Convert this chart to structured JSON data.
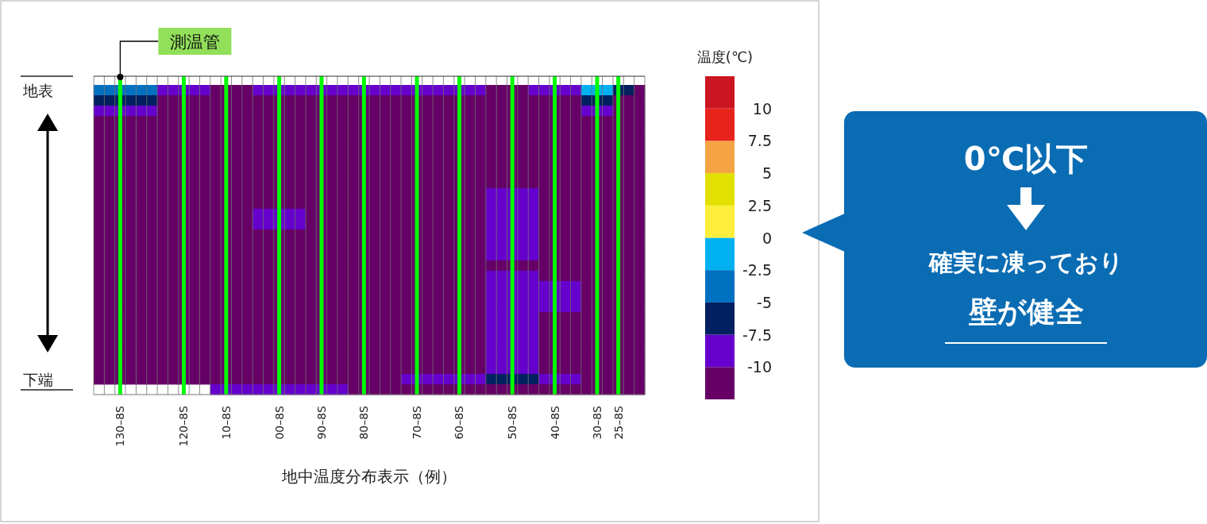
{
  "chart_data": {
    "type": "heatmap",
    "xlabel": "地中温度分布表示（例）",
    "clabel": "温度(℃)",
    "categories": [
      null,
      null,
      "130–8S",
      null,
      null,
      null,
      null,
      null,
      "120–8S",
      null,
      null,
      null,
      "10–8S",
      null,
      null,
      null,
      null,
      "00–8S",
      null,
      null,
      null,
      "90–8S",
      null,
      null,
      null,
      "80–8S",
      null,
      null,
      null,
      null,
      "70–8S",
      null,
      null,
      null,
      "60–8S",
      null,
      null,
      null,
      null,
      "50–8S",
      null,
      null,
      null,
      "40–8S",
      null,
      null,
      null,
      "30–8S",
      null,
      "25–8S",
      null,
      null
    ],
    "y_categories": [
      "地表",
      null,
      null,
      null,
      null,
      null,
      null,
      null,
      null,
      null,
      null,
      null,
      null,
      null,
      null,
      null,
      null,
      null,
      null,
      null,
      null,
      null,
      null,
      null,
      null,
      null,
      null,
      null,
      "下端",
      null
    ],
    "clim": [
      -12.5,
      12.5
    ],
    "cticks": [
      10,
      7.5,
      5,
      2.5,
      0,
      -2.5,
      -5,
      -7.5,
      -10
    ],
    "grid": "x",
    "annotations": [
      "測温管",
      "0℃以下",
      "確実に凍っており",
      "壁が健全"
    ],
    "cells": [
      [
        -3.75,
        -3.75,
        -3.75,
        -3.75,
        -3.75,
        -3.75,
        -8.75,
        -8.75,
        -8.75,
        -8.75,
        -8.75,
        -11.25,
        -11.25,
        -11.25,
        -11.25,
        -8.75,
        -8.75,
        -8.75,
        -8.75,
        -8.75,
        -8.75,
        -8.75,
        -8.75,
        -8.75,
        -8.75,
        -8.75,
        -8.75,
        -8.75,
        -8.75,
        -8.75,
        -8.75,
        -8.75,
        -8.75,
        -8.75,
        -8.75,
        -8.75,
        -8.75,
        -11.25,
        -11.25,
        -11.25,
        -11.25,
        -8.75,
        -8.75,
        -8.75,
        -8.75,
        -8.75,
        -1.25,
        -1.25,
        -1.25,
        -6.25,
        -6.25,
        -11.25
      ],
      [
        -6.25,
        -6.25,
        -6.25,
        -6.25,
        -6.25,
        -6.25,
        -11.25,
        -11.25,
        -11.25,
        -11.25,
        -11.25,
        -11.25,
        -11.25,
        -11.25,
        -11.25,
        -11.25,
        -11.25,
        -11.25,
        -11.25,
        -11.25,
        -11.25,
        -11.25,
        -11.25,
        -11.25,
        -11.25,
        -11.25,
        -11.25,
        -11.25,
        -11.25,
        -11.25,
        -11.25,
        -11.25,
        -11.25,
        -11.25,
        -11.25,
        -11.25,
        -11.25,
        -11.25,
        -11.25,
        -11.25,
        -11.25,
        -11.25,
        -11.25,
        -11.25,
        -11.25,
        -11.25,
        -6.25,
        -6.25,
        -6.25,
        -11.25,
        -11.25,
        -11.25
      ],
      [
        -8.75,
        -8.75,
        -8.75,
        -8.75,
        -8.75,
        -8.75,
        -11.25,
        -11.25,
        -11.25,
        -11.25,
        -11.25,
        -11.25,
        -11.25,
        -11.25,
        -11.25,
        -11.25,
        -11.25,
        -11.25,
        -11.25,
        -11.25,
        -11.25,
        -11.25,
        -11.25,
        -11.25,
        -11.25,
        -11.25,
        -11.25,
        -11.25,
        -11.25,
        -11.25,
        -11.25,
        -11.25,
        -11.25,
        -11.25,
        -11.25,
        -11.25,
        -11.25,
        -11.25,
        -11.25,
        -11.25,
        -11.25,
        -11.25,
        -11.25,
        -11.25,
        -11.25,
        -11.25,
        -8.75,
        -8.75,
        -8.75,
        -11.25,
        -11.25,
        -11.25
      ],
      [
        -11.25,
        -11.25,
        -11.25,
        -11.25,
        -11.25,
        -11.25,
        -11.25,
        -11.25,
        -11.25,
        -11.25,
        -11.25,
        -11.25,
        -11.25,
        -11.25,
        -11.25,
        -11.25,
        -11.25,
        -11.25,
        -11.25,
        -11.25,
        -11.25,
        -11.25,
        -11.25,
        -11.25,
        -11.25,
        -11.25,
        -11.25,
        -11.25,
        -11.25,
        -11.25,
        -11.25,
        -11.25,
        -11.25,
        -11.25,
        -11.25,
        -11.25,
        -11.25,
        -11.25,
        -11.25,
        -11.25,
        -11.25,
        -11.25,
        -11.25,
        -11.25,
        -11.25,
        -11.25,
        -11.25,
        -11.25,
        -11.25,
        -11.25,
        -11.25,
        -11.25
      ],
      [
        -11.25,
        -11.25,
        -11.25,
        -11.25,
        -11.25,
        -11.25,
        -11.25,
        -11.25,
        -11.25,
        -11.25,
        -11.25,
        -11.25,
        -11.25,
        -11.25,
        -11.25,
        -11.25,
        -11.25,
        -11.25,
        -11.25,
        -11.25,
        -11.25,
        -11.25,
        -11.25,
        -11.25,
        -11.25,
        -11.25,
        -11.25,
        -11.25,
        -11.25,
        -11.25,
        -11.25,
        -11.25,
        -11.25,
        -11.25,
        -11.25,
        -11.25,
        -11.25,
        -11.25,
        -11.25,
        -11.25,
        -11.25,
        -11.25,
        -11.25,
        -11.25,
        -11.25,
        -11.25,
        -11.25,
        -11.25,
        -11.25,
        -11.25,
        -11.25,
        -11.25
      ],
      [
        -11.25,
        -11.25,
        -11.25,
        -11.25,
        -11.25,
        -11.25,
        -11.25,
        -11.25,
        -11.25,
        -11.25,
        -11.25,
        -11.25,
        -11.25,
        -11.25,
        -11.25,
        -11.25,
        -11.25,
        -11.25,
        -11.25,
        -11.25,
        -11.25,
        -11.25,
        -11.25,
        -11.25,
        -11.25,
        -11.25,
        -11.25,
        -11.25,
        -11.25,
        -11.25,
        -11.25,
        -11.25,
        -11.25,
        -11.25,
        -11.25,
        -11.25,
        -11.25,
        -11.25,
        -11.25,
        -11.25,
        -11.25,
        -11.25,
        -11.25,
        -11.25,
        -11.25,
        -11.25,
        -11.25,
        -11.25,
        -11.25,
        -11.25,
        -11.25,
        -11.25
      ],
      [
        -11.25,
        -11.25,
        -11.25,
        -11.25,
        -11.25,
        -11.25,
        -11.25,
        -11.25,
        -11.25,
        -11.25,
        -11.25,
        -11.25,
        -11.25,
        -11.25,
        -11.25,
        -11.25,
        -11.25,
        -11.25,
        -11.25,
        -11.25,
        -11.25,
        -11.25,
        -11.25,
        -11.25,
        -11.25,
        -11.25,
        -11.25,
        -11.25,
        -11.25,
        -11.25,
        -11.25,
        -11.25,
        -11.25,
        -11.25,
        -11.25,
        -11.25,
        -11.25,
        -11.25,
        -11.25,
        -11.25,
        -11.25,
        -11.25,
        -11.25,
        -11.25,
        -11.25,
        -11.25,
        -11.25,
        -11.25,
        -11.25,
        -11.25,
        -11.25,
        -11.25
      ],
      [
        -11.25,
        -11.25,
        -11.25,
        -11.25,
        -11.25,
        -11.25,
        -11.25,
        -11.25,
        -11.25,
        -11.25,
        -11.25,
        -11.25,
        -11.25,
        -11.25,
        -11.25,
        -11.25,
        -11.25,
        -11.25,
        -11.25,
        -11.25,
        -11.25,
        -11.25,
        -11.25,
        -11.25,
        -11.25,
        -11.25,
        -11.25,
        -11.25,
        -11.25,
        -11.25,
        -11.25,
        -11.25,
        -11.25,
        -11.25,
        -11.25,
        -11.25,
        -11.25,
        -11.25,
        -11.25,
        -11.25,
        -11.25,
        -11.25,
        -11.25,
        -11.25,
        -11.25,
        -11.25,
        -11.25,
        -11.25,
        -11.25,
        -11.25,
        -11.25,
        -11.25
      ],
      [
        -11.25,
        -11.25,
        -11.25,
        -11.25,
        -11.25,
        -11.25,
        -11.25,
        -11.25,
        -11.25,
        -11.25,
        -11.25,
        -11.25,
        -11.25,
        -11.25,
        -11.25,
        -11.25,
        -11.25,
        -11.25,
        -11.25,
        -11.25,
        -11.25,
        -11.25,
        -11.25,
        -11.25,
        -11.25,
        -11.25,
        -11.25,
        -11.25,
        -11.25,
        -11.25,
        -11.25,
        -11.25,
        -11.25,
        -11.25,
        -11.25,
        -11.25,
        -11.25,
        -11.25,
        -11.25,
        -11.25,
        -11.25,
        -11.25,
        -11.25,
        -11.25,
        -11.25,
        -11.25,
        -11.25,
        -11.25,
        -11.25,
        -11.25,
        -11.25,
        -11.25
      ],
      [
        -11.25,
        -11.25,
        -11.25,
        -11.25,
        -11.25,
        -11.25,
        -11.25,
        -11.25,
        -11.25,
        -11.25,
        -11.25,
        -11.25,
        -11.25,
        -11.25,
        -11.25,
        -11.25,
        -11.25,
        -11.25,
        -11.25,
        -11.25,
        -11.25,
        -11.25,
        -11.25,
        -11.25,
        -11.25,
        -11.25,
        -11.25,
        -11.25,
        -11.25,
        -11.25,
        -11.25,
        -11.25,
        -11.25,
        -11.25,
        -11.25,
        -11.25,
        -11.25,
        -11.25,
        -11.25,
        -11.25,
        -11.25,
        -11.25,
        -11.25,
        -11.25,
        -11.25,
        -11.25,
        -11.25,
        -11.25,
        -11.25,
        -11.25,
        -11.25,
        -11.25
      ],
      [
        -11.25,
        -11.25,
        -11.25,
        -11.25,
        -11.25,
        -11.25,
        -11.25,
        -11.25,
        -11.25,
        -11.25,
        -11.25,
        -11.25,
        -11.25,
        -11.25,
        -11.25,
        -11.25,
        -11.25,
        -11.25,
        -11.25,
        -11.25,
        -11.25,
        -11.25,
        -11.25,
        -11.25,
        -11.25,
        -11.25,
        -11.25,
        -11.25,
        -11.25,
        -11.25,
        -11.25,
        -11.25,
        -11.25,
        -11.25,
        -11.25,
        -11.25,
        -11.25,
        -8.75,
        -8.75,
        -8.75,
        -8.75,
        -8.75,
        -11.25,
        -11.25,
        -11.25,
        -11.25,
        -11.25,
        -11.25,
        -11.25,
        -11.25,
        -11.25,
        -11.25
      ],
      [
        -11.25,
        -11.25,
        -11.25,
        -11.25,
        -11.25,
        -11.25,
        -11.25,
        -11.25,
        -11.25,
        -11.25,
        -11.25,
        -11.25,
        -11.25,
        -11.25,
        -11.25,
        -11.25,
        -11.25,
        -11.25,
        -11.25,
        -11.25,
        -11.25,
        -11.25,
        -11.25,
        -11.25,
        -11.25,
        -11.25,
        -11.25,
        -11.25,
        -11.25,
        -11.25,
        -11.25,
        -11.25,
        -11.25,
        -11.25,
        -11.25,
        -11.25,
        -11.25,
        -8.75,
        -8.75,
        -8.75,
        -8.75,
        -8.75,
        -11.25,
        -11.25,
        -11.25,
        -11.25,
        -11.25,
        -11.25,
        -11.25,
        -11.25,
        -11.25,
        -11.25
      ],
      [
        -11.25,
        -11.25,
        -11.25,
        -11.25,
        -11.25,
        -11.25,
        -11.25,
        -11.25,
        -11.25,
        -11.25,
        -11.25,
        -11.25,
        -11.25,
        -11.25,
        -11.25,
        -8.75,
        -8.75,
        -8.75,
        -8.75,
        -8.75,
        -11.25,
        -11.25,
        -11.25,
        -11.25,
        -11.25,
        -11.25,
        -11.25,
        -11.25,
        -11.25,
        -11.25,
        -11.25,
        -11.25,
        -11.25,
        -11.25,
        -11.25,
        -11.25,
        -11.25,
        -8.75,
        -8.75,
        -8.75,
        -8.75,
        -8.75,
        -11.25,
        -11.25,
        -11.25,
        -11.25,
        -11.25,
        -11.25,
        -11.25,
        -11.25,
        -11.25,
        -11.25
      ],
      [
        -11.25,
        -11.25,
        -11.25,
        -11.25,
        -11.25,
        -11.25,
        -11.25,
        -11.25,
        -11.25,
        -11.25,
        -11.25,
        -11.25,
        -11.25,
        -11.25,
        -11.25,
        -8.75,
        -8.75,
        -8.75,
        -8.75,
        -8.75,
        -11.25,
        -11.25,
        -11.25,
        -11.25,
        -11.25,
        -11.25,
        -11.25,
        -11.25,
        -11.25,
        -11.25,
        -11.25,
        -11.25,
        -11.25,
        -11.25,
        -11.25,
        -11.25,
        -11.25,
        -8.75,
        -8.75,
        -8.75,
        -8.75,
        -8.75,
        -11.25,
        -11.25,
        -11.25,
        -11.25,
        -11.25,
        -11.25,
        -11.25,
        -11.25,
        -11.25,
        -11.25
      ],
      [
        -11.25,
        -11.25,
        -11.25,
        -11.25,
        -11.25,
        -11.25,
        -11.25,
        -11.25,
        -11.25,
        -11.25,
        -11.25,
        -11.25,
        -11.25,
        -11.25,
        -11.25,
        -11.25,
        -11.25,
        -11.25,
        -11.25,
        -11.25,
        -11.25,
        -11.25,
        -11.25,
        -11.25,
        -11.25,
        -11.25,
        -11.25,
        -11.25,
        -11.25,
        -11.25,
        -11.25,
        -11.25,
        -11.25,
        -11.25,
        -11.25,
        -11.25,
        -11.25,
        -8.75,
        -8.75,
        -8.75,
        -8.75,
        -8.75,
        -11.25,
        -11.25,
        -11.25,
        -11.25,
        -11.25,
        -11.25,
        -11.25,
        -11.25,
        -11.25,
        -11.25
      ],
      [
        -11.25,
        -11.25,
        -11.25,
        -11.25,
        -11.25,
        -11.25,
        -11.25,
        -11.25,
        -11.25,
        -11.25,
        -11.25,
        -11.25,
        -11.25,
        -11.25,
        -11.25,
        -11.25,
        -11.25,
        -11.25,
        -11.25,
        -11.25,
        -11.25,
        -11.25,
        -11.25,
        -11.25,
        -11.25,
        -11.25,
        -11.25,
        -11.25,
        -11.25,
        -11.25,
        -11.25,
        -11.25,
        -11.25,
        -11.25,
        -11.25,
        -11.25,
        -11.25,
        -8.75,
        -8.75,
        -8.75,
        -8.75,
        -8.75,
        -11.25,
        -11.25,
        -11.25,
        -11.25,
        -11.25,
        -11.25,
        -11.25,
        -11.25,
        -11.25,
        -11.25
      ],
      [
        -11.25,
        -11.25,
        -11.25,
        -11.25,
        -11.25,
        -11.25,
        -11.25,
        -11.25,
        -11.25,
        -11.25,
        -11.25,
        -11.25,
        -11.25,
        -11.25,
        -11.25,
        -11.25,
        -11.25,
        -11.25,
        -11.25,
        -11.25,
        -11.25,
        -11.25,
        -11.25,
        -11.25,
        -11.25,
        -11.25,
        -11.25,
        -11.25,
        -11.25,
        -11.25,
        -11.25,
        -11.25,
        -11.25,
        -11.25,
        -11.25,
        -11.25,
        -11.25,
        -8.75,
        -8.75,
        -8.75,
        -8.75,
        -8.75,
        -11.25,
        -11.25,
        -11.25,
        -11.25,
        -11.25,
        -11.25,
        -11.25,
        -11.25,
        -11.25,
        -11.25
      ],
      [
        -11.25,
        -11.25,
        -11.25,
        -11.25,
        -11.25,
        -11.25,
        -11.25,
        -11.25,
        -11.25,
        -11.25,
        -11.25,
        -11.25,
        -11.25,
        -11.25,
        -11.25,
        -11.25,
        -11.25,
        -11.25,
        -11.25,
        -11.25,
        -11.25,
        -11.25,
        -11.25,
        -11.25,
        -11.25,
        -11.25,
        -11.25,
        -11.25,
        -11.25,
        -11.25,
        -11.25,
        -11.25,
        -11.25,
        -11.25,
        -11.25,
        -11.25,
        -11.25,
        -11.25,
        -11.25,
        -11.25,
        -11.25,
        -11.25,
        -11.25,
        -11.25,
        -11.25,
        -11.25,
        -11.25,
        -11.25,
        -11.25,
        -11.25,
        -11.25,
        -11.25
      ],
      [
        -11.25,
        -11.25,
        -11.25,
        -11.25,
        -11.25,
        -11.25,
        -11.25,
        -11.25,
        -11.25,
        -11.25,
        -11.25,
        -11.25,
        -11.25,
        -11.25,
        -11.25,
        -11.25,
        -11.25,
        -11.25,
        -11.25,
        -11.25,
        -11.25,
        -11.25,
        -11.25,
        -11.25,
        -11.25,
        -11.25,
        -11.25,
        -11.25,
        -11.25,
        -11.25,
        -11.25,
        -11.25,
        -11.25,
        -11.25,
        -11.25,
        -11.25,
        -11.25,
        -8.75,
        -8.75,
        -8.75,
        -8.75,
        -8.75,
        -11.25,
        -11.25,
        -11.25,
        -11.25,
        -11.25,
        -11.25,
        -11.25,
        -11.25,
        -11.25,
        -11.25
      ],
      [
        -11.25,
        -11.25,
        -11.25,
        -11.25,
        -11.25,
        -11.25,
        -11.25,
        -11.25,
        -11.25,
        -11.25,
        -11.25,
        -11.25,
        -11.25,
        -11.25,
        -11.25,
        -11.25,
        -11.25,
        -11.25,
        -11.25,
        -11.25,
        -11.25,
        -11.25,
        -11.25,
        -11.25,
        -11.25,
        -11.25,
        -11.25,
        -11.25,
        -11.25,
        -11.25,
        -11.25,
        -11.25,
        -11.25,
        -11.25,
        -11.25,
        -11.25,
        -11.25,
        -8.75,
        -8.75,
        -8.75,
        -8.75,
        -8.75,
        -8.75,
        -8.75,
        -8.75,
        -8.75,
        -11.25,
        -11.25,
        -11.25,
        -11.25,
        -11.25,
        -11.25
      ],
      [
        -11.25,
        -11.25,
        -11.25,
        -11.25,
        -11.25,
        -11.25,
        -11.25,
        -11.25,
        -11.25,
        -11.25,
        -11.25,
        -11.25,
        -11.25,
        -11.25,
        -11.25,
        -11.25,
        -11.25,
        -11.25,
        -11.25,
        -11.25,
        -11.25,
        -11.25,
        -11.25,
        -11.25,
        -11.25,
        -11.25,
        -11.25,
        -11.25,
        -11.25,
        -11.25,
        -11.25,
        -11.25,
        -11.25,
        -11.25,
        -11.25,
        -11.25,
        -11.25,
        -8.75,
        -8.75,
        -8.75,
        -8.75,
        -8.75,
        -8.75,
        -8.75,
        -8.75,
        -8.75,
        -11.25,
        -11.25,
        -11.25,
        -11.25,
        -11.25,
        -11.25
      ],
      [
        -11.25,
        -11.25,
        -11.25,
        -11.25,
        -11.25,
        -11.25,
        -11.25,
        -11.25,
        -11.25,
        -11.25,
        -11.25,
        -11.25,
        -11.25,
        -11.25,
        -11.25,
        -11.25,
        -11.25,
        -11.25,
        -11.25,
        -11.25,
        -11.25,
        -11.25,
        -11.25,
        -11.25,
        -11.25,
        -11.25,
        -11.25,
        -11.25,
        -11.25,
        -11.25,
        -11.25,
        -11.25,
        -11.25,
        -11.25,
        -11.25,
        -11.25,
        -11.25,
        -8.75,
        -8.75,
        -8.75,
        -8.75,
        -8.75,
        -8.75,
        -8.75,
        -8.75,
        -8.75,
        -11.25,
        -11.25,
        -11.25,
        -11.25,
        -11.25,
        -11.25
      ],
      [
        -11.25,
        -11.25,
        -11.25,
        -11.25,
        -11.25,
        -11.25,
        -11.25,
        -11.25,
        -11.25,
        -11.25,
        -11.25,
        -11.25,
        -11.25,
        -11.25,
        -11.25,
        -11.25,
        -11.25,
        -11.25,
        -11.25,
        -11.25,
        -11.25,
        -11.25,
        -11.25,
        -11.25,
        -11.25,
        -11.25,
        -11.25,
        -11.25,
        -11.25,
        -11.25,
        -11.25,
        -11.25,
        -11.25,
        -11.25,
        -11.25,
        -11.25,
        -11.25,
        -8.75,
        -8.75,
        -8.75,
        -8.75,
        -8.75,
        -11.25,
        -11.25,
        -11.25,
        -11.25,
        -11.25,
        -11.25,
        -11.25,
        -11.25,
        -11.25,
        -11.25
      ],
      [
        -11.25,
        -11.25,
        -11.25,
        -11.25,
        -11.25,
        -11.25,
        -11.25,
        -11.25,
        -11.25,
        -11.25,
        -11.25,
        -11.25,
        -11.25,
        -11.25,
        -11.25,
        -11.25,
        -11.25,
        -11.25,
        -11.25,
        -11.25,
        -11.25,
        -11.25,
        -11.25,
        -11.25,
        -11.25,
        -11.25,
        -11.25,
        -11.25,
        -11.25,
        -11.25,
        -11.25,
        -11.25,
        -11.25,
        -11.25,
        -11.25,
        -11.25,
        -11.25,
        -8.75,
        -8.75,
        -8.75,
        -8.75,
        -8.75,
        -11.25,
        -11.25,
        -11.25,
        -11.25,
        -11.25,
        -11.25,
        -11.25,
        -11.25,
        -11.25,
        -11.25
      ],
      [
        -11.25,
        -11.25,
        -11.25,
        -11.25,
        -11.25,
        -11.25,
        -11.25,
        -11.25,
        -11.25,
        -11.25,
        -11.25,
        -11.25,
        -11.25,
        -11.25,
        -11.25,
        -11.25,
        -11.25,
        -11.25,
        -11.25,
        -11.25,
        -11.25,
        -11.25,
        -11.25,
        -11.25,
        -11.25,
        -11.25,
        -11.25,
        -11.25,
        -11.25,
        -11.25,
        -11.25,
        -11.25,
        -11.25,
        -11.25,
        -11.25,
        -11.25,
        -11.25,
        -8.75,
        -8.75,
        -8.75,
        -8.75,
        -8.75,
        -11.25,
        -11.25,
        -11.25,
        -11.25,
        -11.25,
        -11.25,
        -11.25,
        -11.25,
        -11.25,
        -11.25
      ],
      [
        -11.25,
        -11.25,
        -11.25,
        -11.25,
        -11.25,
        -11.25,
        -11.25,
        -11.25,
        -11.25,
        -11.25,
        -11.25,
        -11.25,
        -11.25,
        -11.25,
        -11.25,
        -11.25,
        -11.25,
        -11.25,
        -11.25,
        -11.25,
        -11.25,
        -11.25,
        -11.25,
        -11.25,
        -11.25,
        -11.25,
        -11.25,
        -11.25,
        -11.25,
        -11.25,
        -11.25,
        -11.25,
        -11.25,
        -11.25,
        -11.25,
        -11.25,
        -11.25,
        -8.75,
        -8.75,
        -8.75,
        -8.75,
        -8.75,
        -11.25,
        -11.25,
        -11.25,
        -11.25,
        -11.25,
        -11.25,
        -11.25,
        -11.25,
        -11.25,
        -11.25
      ],
      [
        -11.25,
        -11.25,
        -11.25,
        -11.25,
        -11.25,
        -11.25,
        -11.25,
        -11.25,
        -11.25,
        -11.25,
        -11.25,
        -11.25,
        -11.25,
        -11.25,
        -11.25,
        -11.25,
        -11.25,
        -11.25,
        -11.25,
        -11.25,
        -11.25,
        -11.25,
        -11.25,
        -11.25,
        -11.25,
        -11.25,
        -11.25,
        -11.25,
        -11.25,
        -11.25,
        -11.25,
        -11.25,
        -11.25,
        -11.25,
        -11.25,
        -11.25,
        -11.25,
        -8.75,
        -8.75,
        -8.75,
        -8.75,
        -8.75,
        -11.25,
        -11.25,
        -11.25,
        -11.25,
        -11.25,
        -11.25,
        -11.25,
        -11.25,
        -11.25,
        -11.25
      ],
      [
        -11.25,
        -11.25,
        -11.25,
        -11.25,
        -11.25,
        -11.25,
        -11.25,
        -11.25,
        -11.25,
        -11.25,
        -11.25,
        -11.25,
        -11.25,
        -11.25,
        -11.25,
        -11.25,
        -11.25,
        -11.25,
        -11.25,
        -11.25,
        -11.25,
        -11.25,
        -11.25,
        -11.25,
        -11.25,
        -11.25,
        -11.25,
        -11.25,
        -11.25,
        -11.25,
        -11.25,
        -11.25,
        -11.25,
        -11.25,
        -11.25,
        -11.25,
        -11.25,
        -8.75,
        -8.75,
        -8.75,
        -8.75,
        -8.75,
        -11.25,
        -11.25,
        -11.25,
        -11.25,
        -11.25,
        -11.25,
        -11.25,
        -11.25,
        -11.25,
        -11.25
      ],
      [
        -11.25,
        -11.25,
        -11.25,
        -11.25,
        -11.25,
        -11.25,
        -11.25,
        -11.25,
        -11.25,
        -11.25,
        -11.25,
        -11.25,
        -11.25,
        -11.25,
        -11.25,
        -11.25,
        -11.25,
        -11.25,
        -11.25,
        -11.25,
        -11.25,
        -11.25,
        -11.25,
        -11.25,
        -11.25,
        -11.25,
        -11.25,
        -11.25,
        -11.25,
        -8.75,
        -8.75,
        -8.75,
        -8.75,
        -8.75,
        -8.75,
        -8.75,
        -8.75,
        -6.25,
        -6.25,
        -6.25,
        -6.25,
        -6.25,
        -8.75,
        -8.75,
        -8.75,
        -8.75,
        -11.25,
        -11.25,
        -11.25,
        -11.25,
        -11.25,
        -11.25
      ],
      [
        null,
        null,
        null,
        null,
        null,
        null,
        null,
        null,
        null,
        null,
        null,
        -8.75,
        -8.75,
        -8.75,
        -8.75,
        -8.75,
        -8.75,
        -8.75,
        -8.75,
        -8.75,
        -8.75,
        -8.75,
        -8.75,
        -8.75,
        -11.25,
        -11.25,
        -11.25,
        -11.25,
        -11.25,
        -11.25,
        -11.25,
        -11.25,
        -11.25,
        -11.25,
        -11.25,
        -11.25,
        -11.25,
        -11.25,
        -11.25,
        -11.25,
        -11.25,
        -11.25,
        -11.25,
        -11.25,
        -11.25,
        -11.25,
        -11.25,
        -11.25,
        -11.25,
        -11.25,
        -11.25,
        -11.25
      ]
    ]
  }
}
